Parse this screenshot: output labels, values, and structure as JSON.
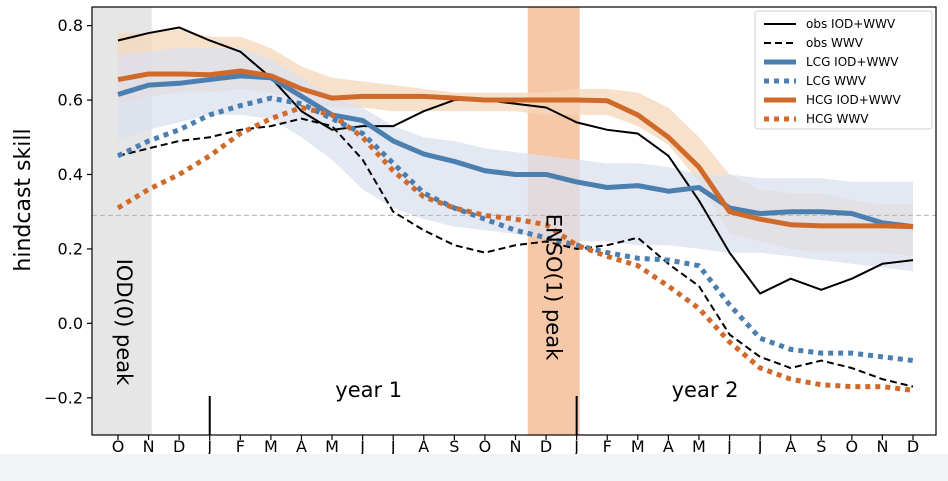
{
  "chart_data": {
    "type": "line",
    "ylabel": "hindcast skill",
    "ylim": [
      -0.3,
      0.85
    ],
    "yticks": [
      -0.2,
      0.0,
      0.2,
      0.4,
      0.6,
      0.8
    ],
    "ytick_labels": [
      "−0.2",
      "0.0",
      "0.2",
      "0.4",
      "0.6",
      "0.8"
    ],
    "xtick_labels": [
      "O",
      "N",
      "D",
      "J",
      "F",
      "M",
      "A",
      "M",
      "J",
      "J",
      "A",
      "S",
      "O",
      "N",
      "D",
      "J",
      "F",
      "M",
      "A",
      "M",
      "J",
      "J",
      "A",
      "S",
      "O",
      "N",
      "D"
    ],
    "reference_line": 0.29,
    "grid": false,
    "legend_position": "top-right",
    "shaded_regions": [
      {
        "from": 0,
        "to": 1.1,
        "color": "#e6e6e6",
        "label": "IOD(0) peak"
      },
      {
        "from": 13.4,
        "to": 15.1,
        "color": "#f7c8a8",
        "label": "ENSO(1) peak"
      }
    ],
    "year_labels": [
      {
        "x": 8.2,
        "label": "year 1"
      },
      {
        "x": 19.2,
        "label": "year 2"
      }
    ],
    "year_dividers": [
      3,
      15
    ],
    "bands": [
      {
        "color": "#f5d7b9",
        "upper": [
          0.78,
          0.78,
          0.79,
          0.77,
          0.77,
          0.74,
          0.69,
          0.66,
          0.65,
          0.64,
          0.63,
          0.62,
          0.62,
          0.62,
          0.62,
          0.63,
          0.63,
          0.62,
          0.58,
          0.5,
          0.4,
          0.36,
          0.35,
          0.35,
          0.33,
          0.32,
          0.32
        ],
        "lower": [
          0.59,
          0.61,
          0.62,
          0.62,
          0.63,
          0.62,
          0.6,
          0.58,
          0.58,
          0.57,
          0.57,
          0.57,
          0.57,
          0.57,
          0.56,
          0.56,
          0.56,
          0.53,
          0.48,
          0.38,
          0.24,
          0.22,
          0.2,
          0.19,
          0.19,
          0.19,
          0.18
        ]
      },
      {
        "color": "#dbe0ef",
        "upper": [
          0.72,
          0.73,
          0.74,
          0.74,
          0.74,
          0.71,
          0.66,
          0.61,
          0.58,
          0.53,
          0.5,
          0.49,
          0.47,
          0.46,
          0.45,
          0.44,
          0.43,
          0.43,
          0.42,
          0.4,
          0.4,
          0.39,
          0.39,
          0.39,
          0.38,
          0.38,
          0.38
        ],
        "lower": [
          0.49,
          0.52,
          0.54,
          0.56,
          0.56,
          0.55,
          0.5,
          0.44,
          0.36,
          0.31,
          0.28,
          0.26,
          0.25,
          0.24,
          0.23,
          0.22,
          0.22,
          0.21,
          0.21,
          0.2,
          0.19,
          0.19,
          0.18,
          0.17,
          0.16,
          0.15,
          0.14
        ]
      }
    ],
    "series": [
      {
        "name": "obs IOD+WWV",
        "color": "#000000",
        "style": "solid",
        "width": 2,
        "values": [
          0.76,
          0.78,
          0.795,
          0.76,
          0.73,
          0.66,
          0.57,
          0.52,
          0.53,
          0.53,
          0.57,
          0.6,
          0.6,
          0.59,
          0.58,
          0.54,
          0.52,
          0.51,
          0.45,
          0.33,
          0.19,
          0.08,
          0.12,
          0.09,
          0.12,
          0.16,
          0.17
        ]
      },
      {
        "name": "obs WWV",
        "color": "#000000",
        "style": "dashed",
        "width": 2,
        "values": [
          0.45,
          0.47,
          0.49,
          0.5,
          0.52,
          0.53,
          0.55,
          0.53,
          0.44,
          0.3,
          0.25,
          0.21,
          0.19,
          0.21,
          0.22,
          0.2,
          0.21,
          0.23,
          0.16,
          0.1,
          -0.03,
          -0.09,
          -0.12,
          -0.1,
          -0.12,
          -0.15,
          -0.17
        ]
      },
      {
        "name": "LCG IOD+WWV",
        "color": "#4a7fb0",
        "style": "solid",
        "width": 5,
        "values": [
          0.615,
          0.64,
          0.645,
          0.655,
          0.665,
          0.66,
          0.61,
          0.56,
          0.545,
          0.49,
          0.455,
          0.435,
          0.41,
          0.4,
          0.4,
          0.38,
          0.365,
          0.37,
          0.355,
          0.365,
          0.31,
          0.295,
          0.3,
          0.3,
          0.295,
          0.27,
          0.26
        ]
      },
      {
        "name": "LCG WWV",
        "color": "#4a7fb0",
        "style": "dotted",
        "width": 5,
        "values": [
          0.45,
          0.49,
          0.52,
          0.56,
          0.585,
          0.605,
          0.59,
          0.55,
          0.51,
          0.43,
          0.35,
          0.31,
          0.28,
          0.25,
          0.23,
          0.21,
          0.19,
          0.175,
          0.17,
          0.155,
          0.05,
          -0.04,
          -0.07,
          -0.08,
          -0.08,
          -0.09,
          -0.1
        ]
      },
      {
        "name": "HCG IOD+WWV",
        "color": "#d06a2a",
        "style": "solid",
        "width": 5,
        "values": [
          0.655,
          0.67,
          0.67,
          0.668,
          0.678,
          0.665,
          0.63,
          0.605,
          0.61,
          0.61,
          0.61,
          0.605,
          0.6,
          0.6,
          0.6,
          0.6,
          0.598,
          0.56,
          0.5,
          0.42,
          0.3,
          0.28,
          0.265,
          0.262,
          0.262,
          0.262,
          0.26
        ]
      },
      {
        "name": "HCG WWV",
        "color": "#d06a2a",
        "style": "dotted",
        "width": 5,
        "values": [
          0.31,
          0.36,
          0.4,
          0.45,
          0.51,
          0.55,
          0.58,
          0.56,
          0.5,
          0.41,
          0.34,
          0.31,
          0.29,
          0.28,
          0.265,
          0.21,
          0.18,
          0.155,
          0.1,
          0.04,
          -0.05,
          -0.12,
          -0.15,
          -0.165,
          -0.17,
          -0.17,
          -0.18
        ]
      }
    ]
  }
}
